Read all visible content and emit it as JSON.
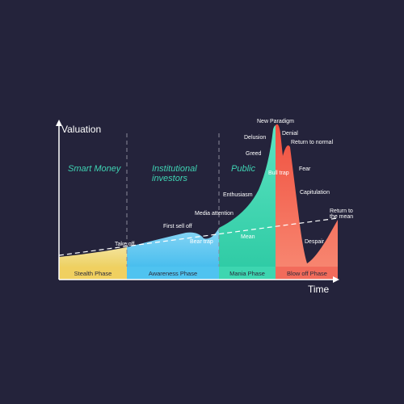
{
  "axes": {
    "y_label": "Valuation",
    "x_label": "Time"
  },
  "zones": [
    "Smart Money",
    "Institutional",
    "investors",
    "Public"
  ],
  "phases": [
    "Stealth Phase",
    "Awareness Phase",
    "Mania Phase",
    "Blow off Phase"
  ],
  "annotations": [
    "Take off",
    "First sell off",
    "Bear trap",
    "Media attention",
    "Mean",
    "Enthusiasm",
    "Greed",
    "Delusion",
    "New Paradigm",
    "Bull trap",
    "Denial",
    "Return to normal",
    "Fear",
    "Capitulation",
    "Despair",
    "Return to",
    "the mean"
  ]
}
